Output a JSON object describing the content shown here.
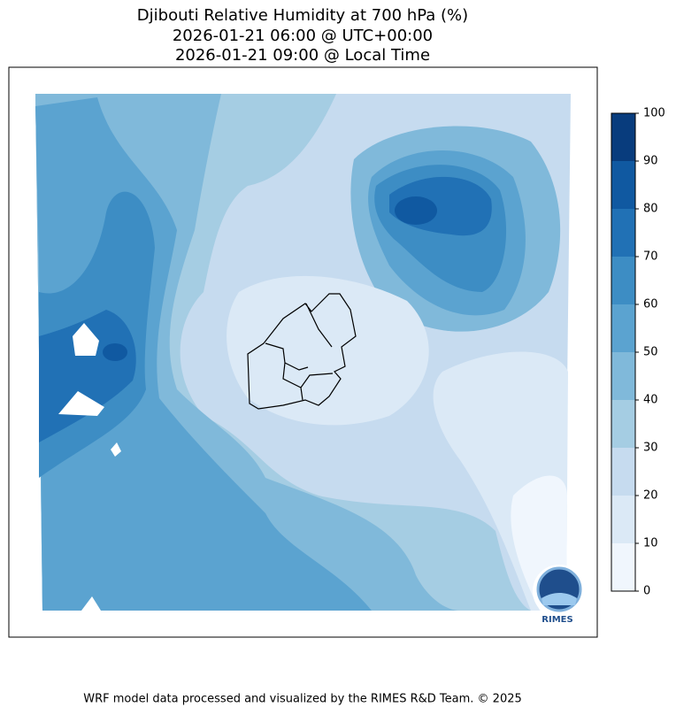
{
  "title": [
    "Djibouti Relative Humidity at 700 hPa (%)",
    "2026-01-21 06:00 @ UTC+00:00",
    "2026-01-21 09:00 @ Local Time"
  ],
  "colorbar": {
    "ticks": [
      0,
      10,
      20,
      30,
      40,
      50,
      60,
      70,
      80,
      90,
      100
    ],
    "colors": [
      "#f0f6fd",
      "#dbe9f6",
      "#c6dbef",
      "#a5cde3",
      "#80b9da",
      "#5ba3d0",
      "#3d8dc4",
      "#2171b5",
      "#1059a1",
      "#083c7d"
    ]
  },
  "logo": "RIMES",
  "footer": "WRF model data processed and visualized by the RIMES R&D Team. © 2025"
}
